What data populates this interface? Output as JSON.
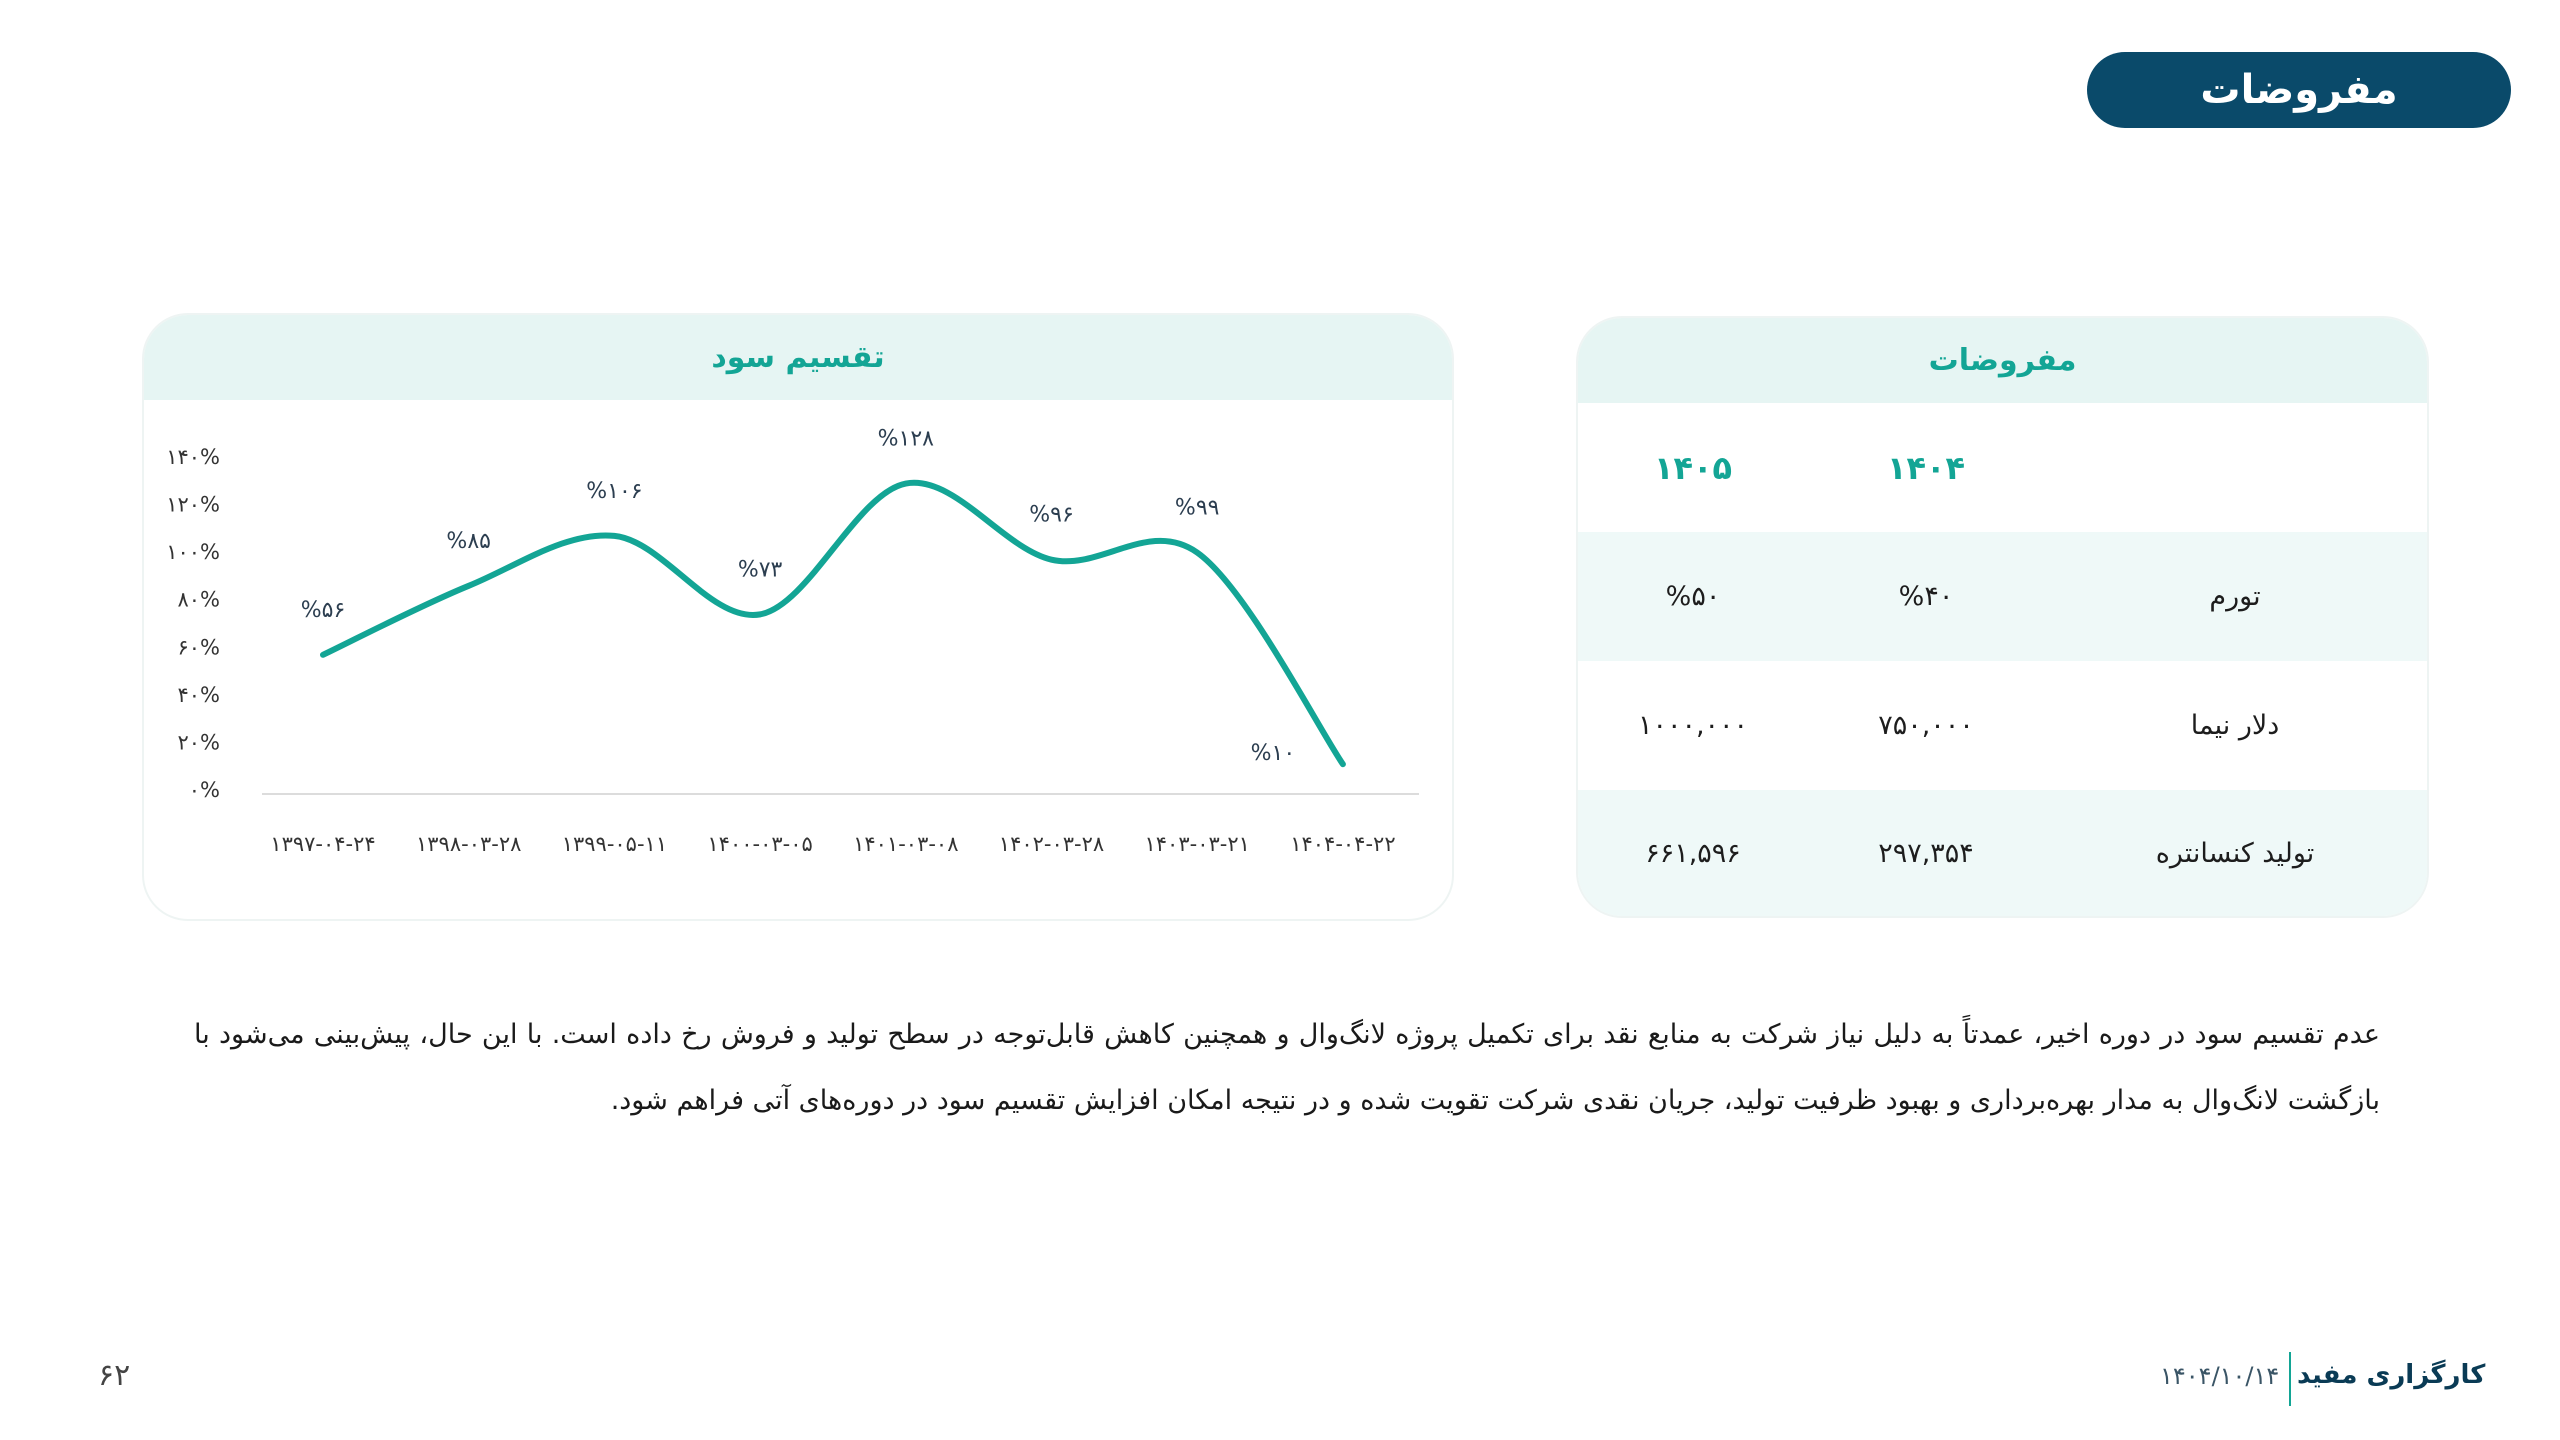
{
  "page_title": "مفروضات",
  "chart_data": {
    "type": "line",
    "title": "تقسیم سود",
    "categories": [
      "۱۳۹۷-۰۴-۲۴",
      "۱۳۹۸-۰۳-۲۸",
      "۱۳۹۹-۰۵-۱۱",
      "۱۴۰۰-۰۳-۰۵",
      "۱۴۰۱-۰۳-۰۸",
      "۱۴۰۲-۰۳-۲۸",
      "۱۴۰۳-۰۳-۲۱",
      "۱۴۰۴-۰۴-۲۲"
    ],
    "values": [
      56,
      85,
      106,
      73,
      128,
      96,
      99,
      10
    ],
    "data_labels": [
      "%۵۶",
      "%۸۵",
      "%۱۰۶",
      "%۷۳",
      "%۱۲۸",
      "%۹۶",
      "%۹۹",
      "%۱۰"
    ],
    "yticks": [
      0,
      20,
      40,
      60,
      80,
      100,
      120,
      140
    ],
    "ytick_labels": [
      "۰%",
      "۲۰%",
      "۴۰%",
      "۶۰%",
      "۸۰%",
      "۱۰۰%",
      "۱۲۰%",
      "۱۴۰%"
    ],
    "ylim": [
      0,
      140
    ],
    "grid": false,
    "smooth": true,
    "color": "#13a595"
  },
  "assumptions": {
    "title": "مفروضات",
    "columns": [
      "۱۴۰۵",
      "۱۴۰۴"
    ],
    "rows": [
      {
        "label": "تورم",
        "v1405": "%۵۰",
        "v1404": "%۴۰"
      },
      {
        "label": "دلار نیما",
        "v1405": "۱۰۰۰,۰۰۰",
        "v1404": "۷۵۰,۰۰۰"
      },
      {
        "label": "تولید کنسانتره",
        "v1405": "۶۶۱,۵۹۶",
        "v1404": "۲۹۷,۳۵۴"
      }
    ]
  },
  "paragraph": "عدم تقسیم سود در دوره اخیر، عمدتاً به دلیل نیاز شرکت به منابع نقد برای تکمیل پروژه لانگ‌وال و همچنین کاهش قابل‌توجه در سطح تولید و فروش رخ داده است. با این حال، پیش‌بینی می‌شود با بازگشت لانگ‌وال به مدار بهره‌برداری و بهبود ظرفیت تولید، جریان نقدی شرکت تقویت شده و در نتیجه امکان افزایش تقسیم سود در دوره‌های آتی فراهم شود.",
  "footer": {
    "page_number": "۶۲",
    "brand": "کارگزاری مفید",
    "date": "۱۴۰۴/۱۰/۱۴"
  },
  "colors": {
    "accent": "#13a595",
    "brand": "#0a4a6a",
    "header_tint": "#e6f5f3"
  }
}
